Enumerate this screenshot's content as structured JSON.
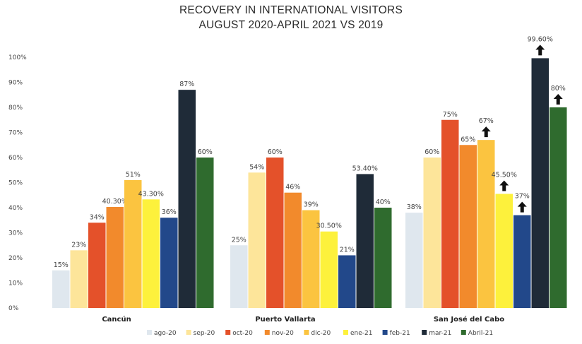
{
  "chart_data": {
    "type": "bar",
    "title": "RECOVERY IN INTERNATIONAL VISITORS",
    "subtitle": "AUGUST 2020-APRIL 2021 VS 2019",
    "categories": [
      "Cancún",
      "Puerto Vallarta",
      "San José del Cabo"
    ],
    "ylim": [
      0,
      100
    ],
    "yticks": [
      "0%",
      "10%",
      "20%",
      "30%",
      "40%",
      "50%",
      "60%",
      "70%",
      "80%",
      "90%",
      "100%"
    ],
    "grid": false,
    "legend_position": "bottom",
    "series": [
      {
        "name": "ago-20",
        "color": "#dfe7ee",
        "values": [
          15,
          25,
          38
        ],
        "labels": [
          "15%",
          "25%",
          "38%"
        ],
        "up_arrow": [
          false,
          false,
          false
        ]
      },
      {
        "name": "sep-20",
        "color": "#fde59a",
        "values": [
          23,
          54,
          60
        ],
        "labels": [
          "23%",
          "54%",
          "60%"
        ],
        "up_arrow": [
          false,
          false,
          false
        ]
      },
      {
        "name": "oct-20",
        "color": "#e4512a",
        "values": [
          34,
          60,
          75
        ],
        "labels": [
          "34%",
          "60%",
          "75%"
        ],
        "up_arrow": [
          false,
          false,
          false
        ]
      },
      {
        "name": "nov-20",
        "color": "#f28a2c",
        "values": [
          40.3,
          46,
          65
        ],
        "labels": [
          "40.30%",
          "46%",
          "65%"
        ],
        "up_arrow": [
          false,
          false,
          false
        ]
      },
      {
        "name": "dic-20",
        "color": "#fbc440",
        "values": [
          51,
          39,
          67
        ],
        "labels": [
          "51%",
          "39%",
          "67%"
        ],
        "up_arrow": [
          false,
          false,
          true
        ]
      },
      {
        "name": "ene-21",
        "color": "#fdf13c",
        "values": [
          43.3,
          30.5,
          45.5
        ],
        "labels": [
          "43.30%",
          "30.50%",
          "45.50%"
        ],
        "up_arrow": [
          false,
          false,
          true
        ]
      },
      {
        "name": "feb-21",
        "color": "#22488a",
        "values": [
          36,
          21,
          37
        ],
        "labels": [
          "36%",
          "21%",
          "37%"
        ],
        "up_arrow": [
          false,
          false,
          true
        ]
      },
      {
        "name": "mar-21",
        "color": "#1f2b38",
        "values": [
          87,
          53.4,
          99.6
        ],
        "labels": [
          "87%",
          "53.40%",
          "99.60%"
        ],
        "up_arrow": [
          false,
          false,
          true
        ]
      },
      {
        "name": "Abril-21",
        "color": "#2f6b2e",
        "values": [
          60,
          40,
          80
        ],
        "labels": [
          "60%",
          "40%",
          "80%"
        ],
        "up_arrow": [
          false,
          false,
          true
        ]
      }
    ]
  }
}
